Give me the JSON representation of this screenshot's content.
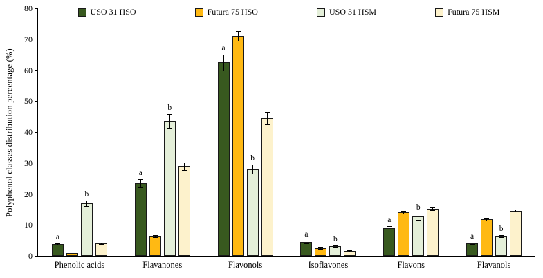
{
  "chart_data": {
    "type": "bar",
    "title": "",
    "xlabel": "",
    "ylabel": "Polyphenol classes distribution percentage (%)",
    "ylim": [
      0,
      80
    ],
    "ytick_step": 10,
    "grid": false,
    "legend_position": "top",
    "categories": [
      "Phenolic acids",
      "Flavanones",
      "Flavonols",
      "Isoflavones",
      "Flavons",
      "Flavanols"
    ],
    "series": [
      {
        "name": "USO 31 HSO",
        "color": "#38591f",
        "values": [
          3.8,
          23.5,
          62.5,
          4.5,
          9.0,
          4.0
        ],
        "errors": [
          0.3,
          1.3,
          2.5,
          0.4,
          0.5,
          0.3
        ],
        "sig": [
          "a",
          "a",
          "a",
          "a",
          "a",
          "a"
        ]
      },
      {
        "name": "Futura 75 HSO",
        "color": "#ffb913",
        "values": [
          0.9,
          6.4,
          71.0,
          2.5,
          14.1,
          11.9
        ],
        "errors": [
          0,
          0.3,
          1.6,
          0.3,
          0.4,
          0.5
        ],
        "sig": [
          "",
          "",
          "",
          "",
          "",
          ""
        ]
      },
      {
        "name": "USO 31 HSM",
        "color": "#e4efd9",
        "values": [
          17.0,
          43.5,
          28.0,
          3.1,
          12.7,
          6.4
        ],
        "errors": [
          0.8,
          2.2,
          1.4,
          0.3,
          1.0,
          0.3
        ],
        "sig": [
          "b",
          "b",
          "b",
          "b",
          "b",
          "b"
        ]
      },
      {
        "name": "Futura 75 HSM",
        "color": "#fdf2cc",
        "values": [
          4.0,
          29.0,
          44.5,
          1.5,
          15.2,
          14.6
        ],
        "errors": [
          0.3,
          1.2,
          2.0,
          0.2,
          0.5,
          0.4
        ],
        "sig": [
          "",
          "",
          "",
          "",
          "",
          ""
        ]
      }
    ]
  }
}
